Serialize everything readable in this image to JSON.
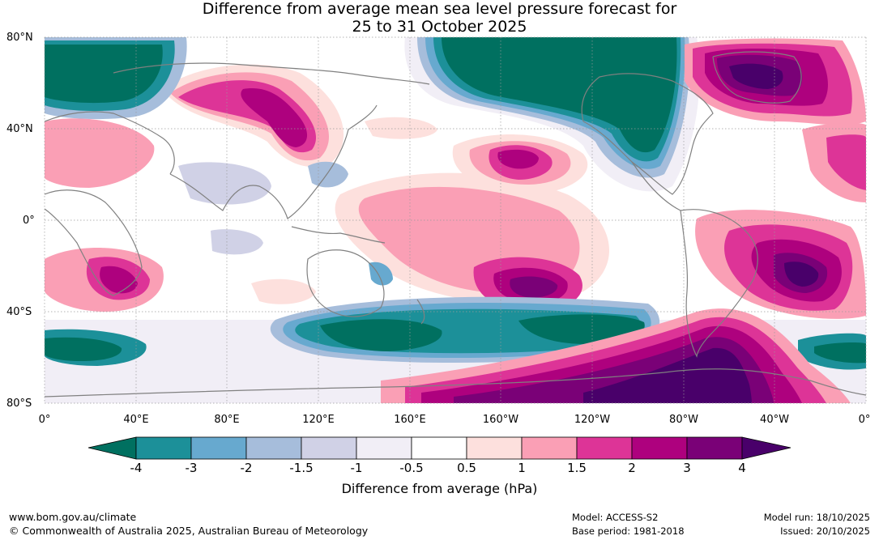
{
  "title": {
    "line1": "Difference from average mean sea level pressure forecast for",
    "line2": "25 to 31 October 2025"
  },
  "map": {
    "lat_labels": [
      "80°N",
      "40°N",
      "0°",
      "40°S",
      "80°S"
    ],
    "lon_labels": [
      "0°",
      "40°E",
      "80°E",
      "120°E",
      "160°E",
      "160°W",
      "120°W",
      "80°W",
      "40°W",
      "0°"
    ],
    "colors": {
      "neg4": "#007060",
      "neg3": "#1c9099",
      "neg2": "#67a9cf",
      "neg15": "#a6bddb",
      "neg1": "#d0d1e6",
      "neg05": "#f1eef6",
      "neutral": "#ffffff",
      "pos05": "#fde0dd",
      "pos1": "#fa9fb5",
      "pos15": "#dd3497",
      "pos2": "#ae017e",
      "pos3": "#7a0177",
      "pos4": "#49006a",
      "coast": "#808080",
      "grid": "#9a9a9a"
    }
  },
  "colorbar": {
    "ticks": [
      "-4",
      "-3",
      "-2",
      "-1.5",
      "-1",
      "-0.5",
      "0.5",
      "1",
      "1.5",
      "2",
      "3",
      "4"
    ],
    "caption": "Difference from average (hPa)"
  },
  "footer": {
    "website": "www.bom.gov.au/climate",
    "copyright": "© Commonwealth of Australia 2025, Australian Bureau of Meteorology",
    "model": "Model: ACCESS-S2",
    "base_period": "Base period: 1981-2018",
    "model_run": "Model run: 18/10/2025",
    "issued": "Issued: 20/10/2025"
  }
}
